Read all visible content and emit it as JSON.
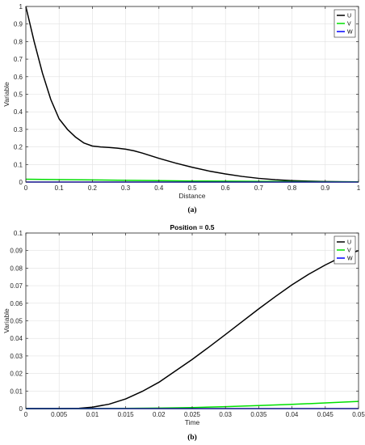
{
  "chart_data": [
    {
      "type": "line",
      "title": "",
      "caption": "(a)",
      "xlabel": "Distance",
      "ylabel": "Variable",
      "xlim": [
        0,
        1
      ],
      "ylim": [
        0,
        1
      ],
      "x_ticks": [
        "0",
        "0.1",
        "0.2",
        "0.3",
        "0.4",
        "0.5",
        "0.6",
        "0.7",
        "0.8",
        "0.9",
        "1"
      ],
      "y_ticks": [
        "0",
        "0.1",
        "0.2",
        "0.3",
        "0.4",
        "0.5",
        "0.6",
        "0.7",
        "0.8",
        "0.9",
        "1"
      ],
      "grid": true,
      "legend_position": "top-right",
      "series": [
        {
          "name": "U",
          "color": "#000000",
          "x": [
            0,
            0.025,
            0.05,
            0.075,
            0.1,
            0.125,
            0.15,
            0.175,
            0.2,
            0.225,
            0.25,
            0.275,
            0.3,
            0.325,
            0.35,
            0.375,
            0.4,
            0.45,
            0.5,
            0.55,
            0.6,
            0.65,
            0.7,
            0.75,
            0.8,
            0.85,
            0.9,
            0.95,
            1
          ],
          "y": [
            1.0,
            0.8,
            0.62,
            0.47,
            0.36,
            0.3,
            0.255,
            0.222,
            0.205,
            0.2,
            0.197,
            0.193,
            0.187,
            0.178,
            0.165,
            0.15,
            0.135,
            0.108,
            0.084,
            0.063,
            0.046,
            0.032,
            0.021,
            0.013,
            0.008,
            0.005,
            0.003,
            0.002,
            0.001
          ]
        },
        {
          "name": "V",
          "color": "#00e000",
          "x": [
            0,
            0.1,
            0.2,
            0.3,
            0.4,
            0.5,
            0.6,
            0.7,
            0.8,
            0.9,
            1
          ],
          "y": [
            0.016,
            0.014,
            0.012,
            0.01,
            0.008,
            0.006,
            0.005,
            0.004,
            0.003,
            0.002,
            0.001
          ]
        },
        {
          "name": "W",
          "color": "#0000ff",
          "x": [
            0,
            0.5,
            1
          ],
          "y": [
            0,
            0,
            0
          ]
        }
      ]
    },
    {
      "type": "line",
      "title": "Position = 0.5",
      "caption": "(b)",
      "xlabel": "Time",
      "ylabel": "Variable",
      "xlim": [
        0,
        0.05
      ],
      "ylim": [
        0,
        0.1
      ],
      "x_ticks": [
        "0",
        "0.005",
        "0.01",
        "0.015",
        "0.02",
        "0.025",
        "0.03",
        "0.035",
        "0.04",
        "0.045",
        "0.05"
      ],
      "y_ticks": [
        "0",
        "0.01",
        "0.02",
        "0.03",
        "0.04",
        "0.05",
        "0.06",
        "0.07",
        "0.08",
        "0.09",
        "0.1"
      ],
      "grid": true,
      "legend_position": "top-right",
      "series": [
        {
          "name": "U",
          "color": "#000000",
          "x": [
            0,
            0.005,
            0.008,
            0.01,
            0.0125,
            0.015,
            0.0175,
            0.02,
            0.0225,
            0.025,
            0.0275,
            0.03,
            0.0325,
            0.035,
            0.0375,
            0.04,
            0.0425,
            0.045,
            0.0475,
            0.05
          ],
          "y": [
            0,
            0,
            0.0002,
            0.0008,
            0.0025,
            0.0055,
            0.0098,
            0.015,
            0.0215,
            0.028,
            0.035,
            0.0422,
            0.0495,
            0.0568,
            0.0638,
            0.0705,
            0.0765,
            0.0818,
            0.0865,
            0.09
          ]
        },
        {
          "name": "V",
          "color": "#00e000",
          "x": [
            0,
            0.01,
            0.015,
            0.02,
            0.025,
            0.03,
            0.035,
            0.04,
            0.045,
            0.05
          ],
          "y": [
            0,
            0,
            0.0001,
            0.0003,
            0.0006,
            0.0011,
            0.0017,
            0.0024,
            0.0032,
            0.0041
          ]
        },
        {
          "name": "W",
          "color": "#0000ff",
          "x": [
            0,
            0.025,
            0.05
          ],
          "y": [
            0,
            0,
            0
          ]
        }
      ]
    }
  ]
}
